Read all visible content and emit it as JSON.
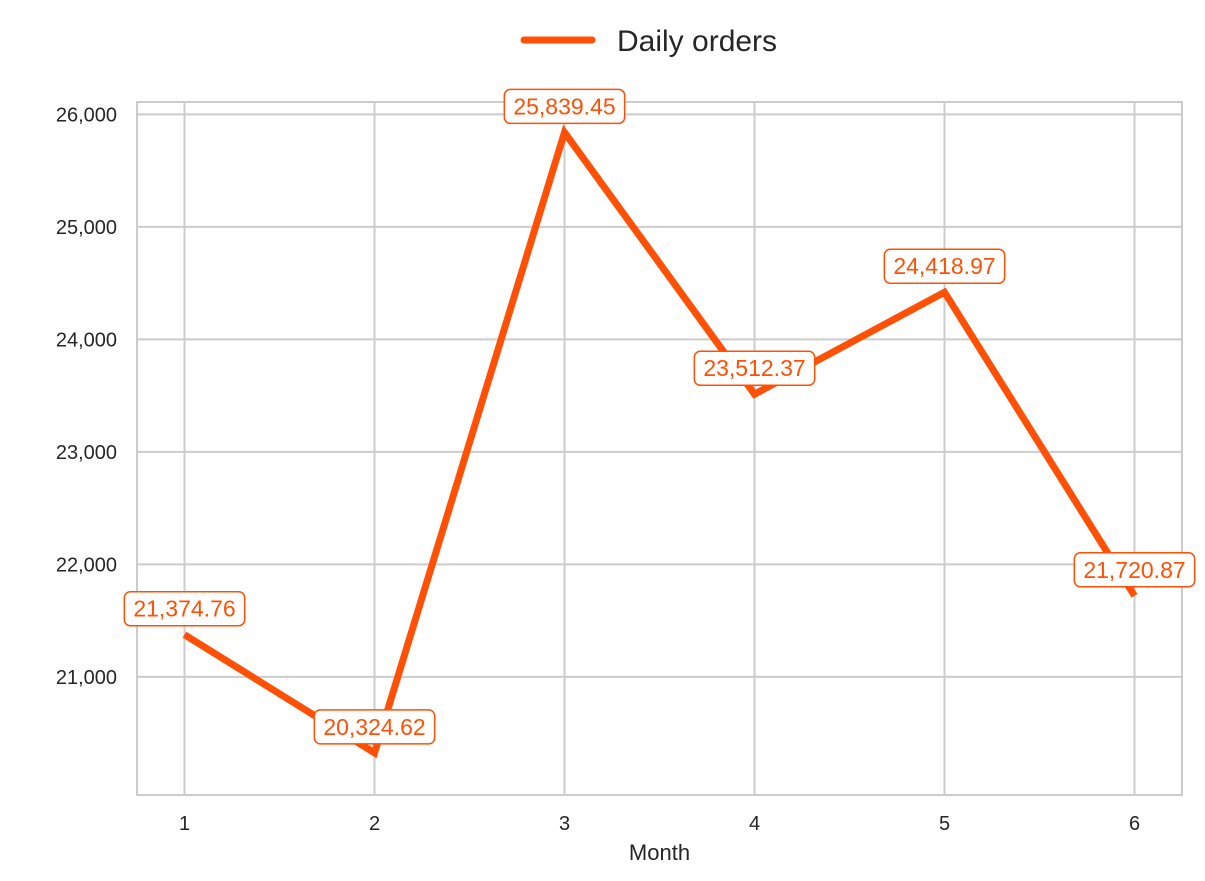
{
  "chart_data": {
    "type": "line",
    "title": "",
    "xlabel": "Month",
    "ylabel": "",
    "x": [
      1,
      2,
      3,
      4,
      5,
      6
    ],
    "xticks": [
      "1",
      "2",
      "3",
      "4",
      "5",
      "6"
    ],
    "yticks": [
      "21,000",
      "22,000",
      "23,000",
      "24,000",
      "25,000",
      "26,000"
    ],
    "ylim": [
      19950,
      26110
    ],
    "xlim": [
      0.75,
      6.25
    ],
    "grid": true,
    "legend_position": "top-center",
    "series": [
      {
        "name": "Daily orders",
        "color": "#ff5005",
        "values": [
          21374.76,
          20324.62,
          25839.45,
          23512.37,
          24418.97,
          21720.87
        ],
        "labels": [
          "21,374.76",
          "20,324.62",
          "25,839.45",
          "23,512.37",
          "24,418.97",
          "21,720.87"
        ]
      }
    ]
  }
}
